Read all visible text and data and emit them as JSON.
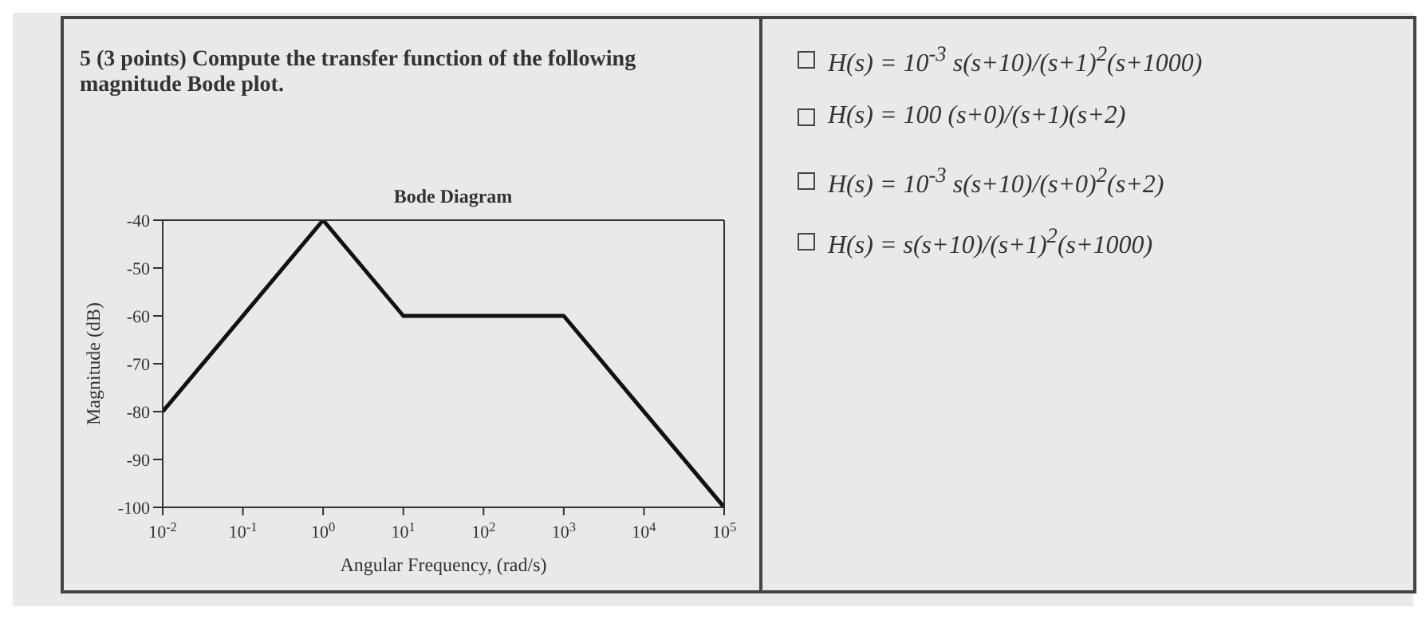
{
  "chart_data": {
    "type": "line",
    "title": "Bode Diagram",
    "xlabel": "Angular Frequency, (rad/s)",
    "ylabel": "Magnitude (dB)",
    "x": [
      0.01,
      1,
      10,
      1000,
      100000
    ],
    "series": [
      {
        "color": "#111111",
        "values": [
          -80,
          -40,
          -60,
          -60,
          -100
        ]
      }
    ],
    "log": "x",
    "xlim": [
      0.01,
      100000
    ],
    "xticks": [
      {
        "value": 0.01,
        "label": "10$^{-2}$"
      },
      {
        "value": 0.1,
        "label": "10$^{-1}$"
      },
      {
        "value": 1,
        "label": "10$^{0}$"
      },
      {
        "value": 10,
        "label": "10$^{1}$"
      },
      {
        "value": 100,
        "label": "10$^{2}$"
      },
      {
        "value": 1000,
        "label": "10$^{3}$"
      },
      {
        "value": 10000,
        "label": "10$^{4}$"
      },
      {
        "value": 100000,
        "label": "10$^{5}$"
      }
    ],
    "ylim": [
      -100,
      -40
    ],
    "yticks": [
      -100,
      -90,
      -80,
      -70,
      -60,
      -50,
      -40
    ],
    "marker": "none",
    "line_style": "solid",
    "annotations": [
      "5 (3 points) Compute the transfer function of the following magnitude Bode plot.",
      "H(s) = 10$^{-3}$ s(s+10)/(s+1)$^{2}$(s+1000)",
      "H(s) = 100 (s+0)/(s+1)(s+2)",
      "H(s) = 10$^{-3}$ s(s+10)/(s+0)$^{2}$(s+2)",
      "H(s) = s(s+10)/(s+1)$^{2}$(s+1000)"
    ]
  }
}
